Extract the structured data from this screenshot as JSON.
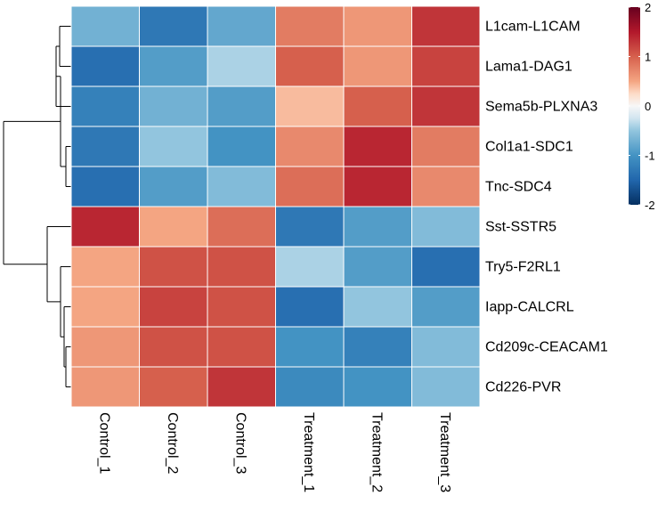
{
  "chart_data": {
    "type": "heatmap",
    "title": "",
    "xlabel": "",
    "ylabel": "",
    "columns": [
      "Control_1",
      "Control_2",
      "Control_3",
      "Treatment_1",
      "Treatment_2",
      "Treatment_3"
    ],
    "rows": [
      "L1cam-L1CAM",
      "Lama1-DAG1",
      "Sema5b-PLXNA3",
      "Col1a1-SDC1",
      "Tnc-SDC4",
      "Sst-SSTR5",
      "Try5-F2RL1",
      "Iapp-CALCRL",
      "Cd209c-CEACAM1",
      "Cd226-PVR"
    ],
    "values": [
      [
        -0.7,
        -1.3,
        -0.8,
        0.8,
        0.6,
        1.3
      ],
      [
        -1.4,
        -0.9,
        -0.4,
        1.0,
        0.6,
        1.2
      ],
      [
        -1.2,
        -0.7,
        -0.9,
        0.4,
        1.0,
        1.3
      ],
      [
        -1.3,
        -0.5,
        -1.0,
        0.7,
        1.4,
        0.8
      ],
      [
        -1.4,
        -0.9,
        -0.6,
        0.9,
        1.4,
        0.7
      ],
      [
        1.4,
        0.5,
        0.9,
        -1.3,
        -0.9,
        -0.6
      ],
      [
        0.5,
        1.1,
        1.1,
        -0.4,
        -0.9,
        -1.4
      ],
      [
        0.5,
        1.2,
        1.1,
        -1.4,
        -0.5,
        -0.9
      ],
      [
        0.6,
        1.1,
        1.1,
        -1.0,
        -1.2,
        -0.6
      ],
      [
        0.6,
        1.0,
        1.3,
        -1.1,
        -1.0,
        -0.6
      ]
    ],
    "color_scale": {
      "min": -2,
      "max": 2,
      "stops": [
        {
          "value": -2,
          "color": "#053061"
        },
        {
          "value": -1.5,
          "color": "#2166ac"
        },
        {
          "value": -1,
          "color": "#4393c3"
        },
        {
          "value": -0.5,
          "color": "#92c5de"
        },
        {
          "value": -0.25,
          "color": "#d1e5f0"
        },
        {
          "value": 0,
          "color": "#f7f7f7"
        },
        {
          "value": 0.25,
          "color": "#fddbc7"
        },
        {
          "value": 0.5,
          "color": "#f4a582"
        },
        {
          "value": 1,
          "color": "#d6604d"
        },
        {
          "value": 1.5,
          "color": "#b2182b"
        },
        {
          "value": 2,
          "color": "#67001f"
        }
      ]
    },
    "legend": {
      "position": "right",
      "ticks": [
        "2",
        "1",
        "0",
        "-1",
        "-2"
      ]
    },
    "row_dendrogram": true,
    "cell_border_color": "#ffffff"
  }
}
